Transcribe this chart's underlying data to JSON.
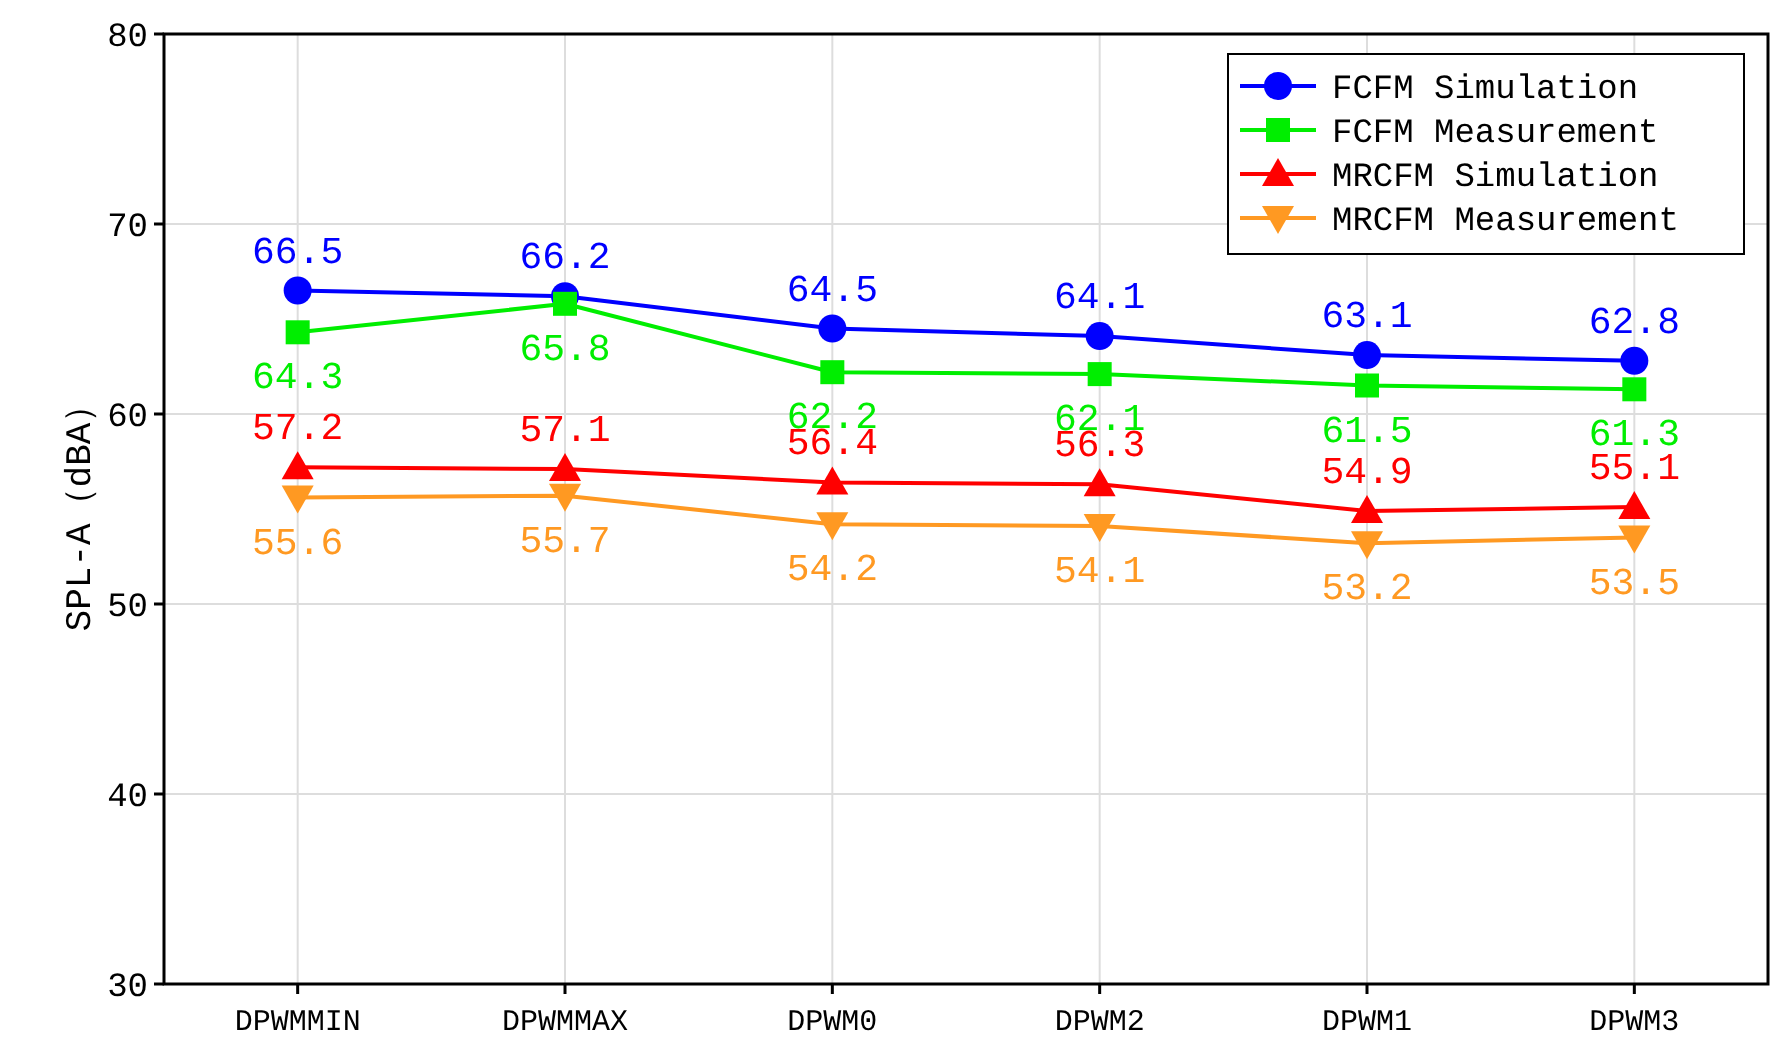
{
  "chart_data": {
    "type": "line",
    "ylabel": "SPL-A（dBA）",
    "categories": [
      "DPWMMIN",
      "DPWMMAX",
      "DPWM0",
      "DPWM2",
      "DPWM1",
      "DPWM3"
    ],
    "series": [
      {
        "name": "FCFM Simulation",
        "color": "#0000ff",
        "marker": "circle",
        "values": [
          66.5,
          66.2,
          64.5,
          64.1,
          63.1,
          62.8
        ]
      },
      {
        "name": "FCFM Measurement",
        "color": "#00ee00",
        "marker": "square",
        "values": [
          64.3,
          65.8,
          62.2,
          62.1,
          61.5,
          61.3
        ]
      },
      {
        "name": "MRCFM Simulation",
        "color": "#ff0000",
        "marker": "triangle",
        "values": [
          57.2,
          57.1,
          56.4,
          56.3,
          54.9,
          55.1
        ]
      },
      {
        "name": "MRCFM Measurement",
        "color": "#ff9922",
        "marker": "triangle-down",
        "values": [
          55.6,
          55.7,
          54.2,
          54.1,
          53.2,
          53.5
        ]
      }
    ],
    "ylim": [
      30,
      80
    ],
    "yticks": [
      30,
      40,
      50,
      60,
      70,
      80
    ],
    "grid": true,
    "legend": "top right",
    "data_labels": true
  }
}
